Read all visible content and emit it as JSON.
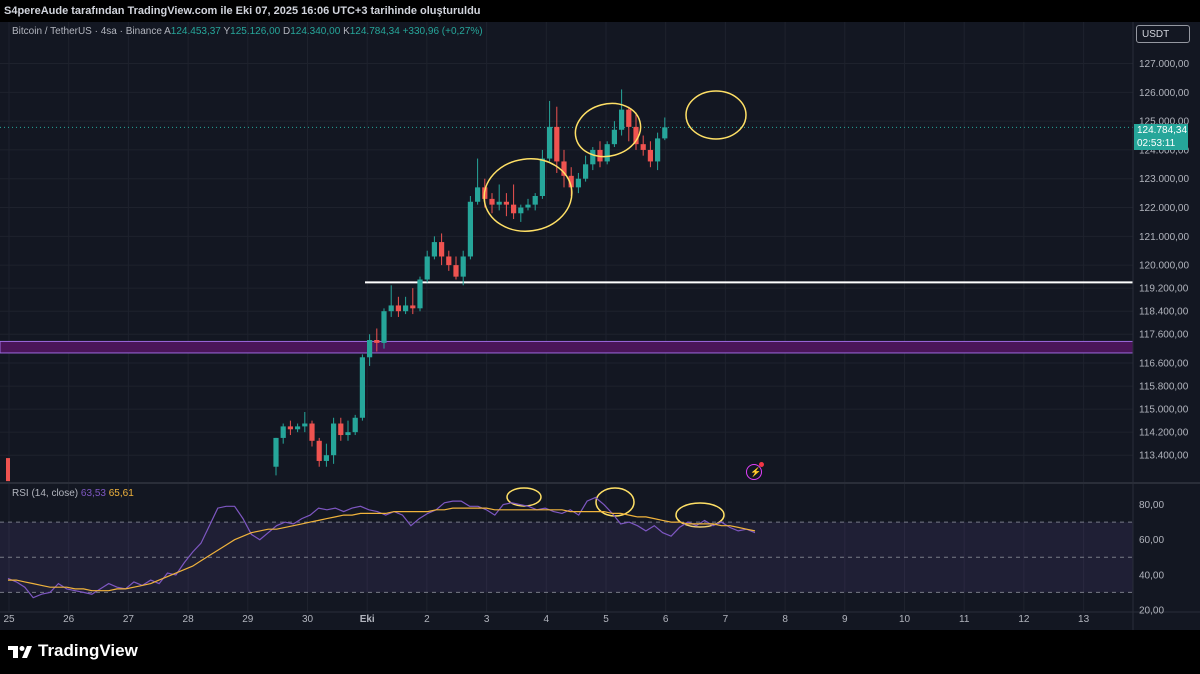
{
  "header": {
    "attribution": "S4pereAude tarafından TradingView.com ile Eki 07, 2025 16:06 UTC+3 tarihinde oluşturuldu"
  },
  "legend": {
    "symbol": "Bitcoin / TetherUS · 4sa · Binance",
    "open_label": "A",
    "open": "124.453,37",
    "high_label": "Y",
    "high": "125.126,00",
    "low_label": "D",
    "low": "124.340,00",
    "close_label": "K",
    "close": "124.784,34",
    "change": "+330,96 (+0,27%)"
  },
  "currency_button": "USDT",
  "last_price": {
    "value": "124.784,34",
    "countdown": "02:53:11"
  },
  "rsi_legend": {
    "label": "RSI (14, close)",
    "rsi": "63,53",
    "ma": "65,61"
  },
  "colors": {
    "up": "#26a69a",
    "down": "#ef5350",
    "rsi": "#7e57c2",
    "rsi_ma": "#f0b33c",
    "zone": "#7b1fa2",
    "background": "#131722"
  },
  "branding": {
    "logo": "tradingview-logo",
    "name": "TradingView"
  },
  "chart_data": [
    {
      "type": "candlestick",
      "timeframe": "4sa",
      "price_axis_ticks": [
        127000,
        126000,
        125000,
        124000,
        123000,
        122000,
        121000,
        120000,
        119200,
        118400,
        117600,
        116600,
        115800,
        115000,
        114200,
        113400
      ],
      "price_axis_labels": [
        "127.000,00",
        "126.000,00",
        "125.000,00",
        "124.000,00",
        "123.000,00",
        "122.000,00",
        "121.000,00",
        "120.000,00",
        "119.200,00",
        "118.400,00",
        "117.600,00",
        "116.600,00",
        "115.800,00",
        "115.000,00",
        "114.200,00",
        "113.400,00"
      ],
      "x_axis_labels": [
        "25",
        "26",
        "27",
        "28",
        "29",
        "30",
        "Eki",
        "2",
        "3",
        "4",
        "5",
        "6",
        "7",
        "8",
        "9",
        "10",
        "11",
        "12",
        "13"
      ],
      "candles": [
        {
          "o": 113000,
          "h": 114000,
          "c": 114000,
          "l": 112700
        },
        {
          "o": 114000,
          "h": 114500,
          "c": 114400,
          "l": 113800
        },
        {
          "o": 114400,
          "h": 114600,
          "c": 114300,
          "l": 114100
        },
        {
          "o": 114300,
          "h": 114500,
          "c": 114400,
          "l": 114200
        },
        {
          "o": 114400,
          "h": 114900,
          "c": 114500,
          "l": 114200
        },
        {
          "o": 114500,
          "h": 114600,
          "c": 113900,
          "l": 113700
        },
        {
          "o": 113900,
          "h": 114000,
          "c": 113200,
          "l": 113000
        },
        {
          "o": 113200,
          "h": 113800,
          "c": 113400,
          "l": 113000
        },
        {
          "o": 113400,
          "h": 114700,
          "c": 114500,
          "l": 113100
        },
        {
          "o": 114500,
          "h": 114700,
          "c": 114100,
          "l": 113900
        },
        {
          "o": 114100,
          "h": 114600,
          "c": 114200,
          "l": 113900
        },
        {
          "o": 114200,
          "h": 114800,
          "c": 114700,
          "l": 114100
        },
        {
          "o": 114700,
          "h": 116900,
          "c": 116800,
          "l": 114600
        },
        {
          "o": 116800,
          "h": 117600,
          "c": 117400,
          "l": 116500
        },
        {
          "o": 117400,
          "h": 117800,
          "c": 117300,
          "l": 117000
        },
        {
          "o": 117300,
          "h": 118500,
          "c": 118400,
          "l": 117100
        },
        {
          "o": 118400,
          "h": 119300,
          "c": 118600,
          "l": 118200
        },
        {
          "o": 118600,
          "h": 118900,
          "c": 118400,
          "l": 118200
        },
        {
          "o": 118400,
          "h": 118900,
          "c": 118600,
          "l": 118300
        },
        {
          "o": 118600,
          "h": 119200,
          "c": 118500,
          "l": 118300
        },
        {
          "o": 118500,
          "h": 119600,
          "c": 119500,
          "l": 118400
        },
        {
          "o": 119500,
          "h": 120500,
          "c": 120300,
          "l": 119400
        },
        {
          "o": 120300,
          "h": 121000,
          "c": 120800,
          "l": 120200
        },
        {
          "o": 120800,
          "h": 121100,
          "c": 120300,
          "l": 120000
        },
        {
          "o": 120300,
          "h": 120500,
          "c": 120000,
          "l": 119800
        },
        {
          "o": 120000,
          "h": 120300,
          "c": 119600,
          "l": 119500
        },
        {
          "o": 119600,
          "h": 120500,
          "c": 120300,
          "l": 119300
        },
        {
          "o": 120300,
          "h": 122400,
          "c": 122200,
          "l": 120200
        },
        {
          "o": 122200,
          "h": 123700,
          "c": 122700,
          "l": 122100
        },
        {
          "o": 122700,
          "h": 123000,
          "c": 122300,
          "l": 122000
        },
        {
          "o": 122300,
          "h": 122500,
          "c": 122100,
          "l": 121800
        },
        {
          "o": 122100,
          "h": 122800,
          "c": 122200,
          "l": 121900
        },
        {
          "o": 122200,
          "h": 122500,
          "c": 122100,
          "l": 121700
        },
        {
          "o": 122100,
          "h": 122800,
          "c": 121800,
          "l": 121600
        },
        {
          "o": 121800,
          "h": 122100,
          "c": 122000,
          "l": 121500
        },
        {
          "o": 122000,
          "h": 122300,
          "c": 122100,
          "l": 121900
        },
        {
          "o": 122100,
          "h": 122500,
          "c": 122400,
          "l": 121900
        },
        {
          "o": 122400,
          "h": 124000,
          "c": 123700,
          "l": 122300
        },
        {
          "o": 123700,
          "h": 125700,
          "c": 124800,
          "l": 123600
        },
        {
          "o": 124800,
          "h": 125500,
          "c": 123600,
          "l": 123200
        },
        {
          "o": 123600,
          "h": 124000,
          "c": 123100,
          "l": 122700
        },
        {
          "o": 123100,
          "h": 123400,
          "c": 122700,
          "l": 122400
        },
        {
          "o": 122700,
          "h": 123200,
          "c": 123000,
          "l": 122500
        },
        {
          "o": 123000,
          "h": 123800,
          "c": 123500,
          "l": 122900
        },
        {
          "o": 123500,
          "h": 124100,
          "c": 124000,
          "l": 123300
        },
        {
          "o": 124000,
          "h": 124300,
          "c": 123600,
          "l": 123400
        },
        {
          "o": 123600,
          "h": 124300,
          "c": 124200,
          "l": 123500
        },
        {
          "o": 124200,
          "h": 125000,
          "c": 124700,
          "l": 124100
        },
        {
          "o": 124700,
          "h": 126100,
          "c": 125400,
          "l": 124500
        },
        {
          "o": 125400,
          "h": 125500,
          "c": 124800,
          "l": 124300
        },
        {
          "o": 124800,
          "h": 125300,
          "c": 124200,
          "l": 124000
        },
        {
          "o": 124200,
          "h": 124500,
          "c": 124000,
          "l": 123800
        },
        {
          "o": 124000,
          "h": 124300,
          "c": 123600,
          "l": 123400
        },
        {
          "o": 123600,
          "h": 124600,
          "c": 124400,
          "l": 123300
        },
        {
          "o": 124400,
          "h": 125126,
          "c": 124784,
          "l": 124340
        }
      ],
      "horizontal_line": {
        "price": 119400,
        "color": "#ffffff"
      },
      "zone": {
        "from": 116950,
        "to": 117350,
        "color": "#7b1fa2"
      },
      "last_price_line": 124784.34,
      "annotations": [
        "freehand circles drawn in yellow around three local peaks"
      ]
    },
    {
      "type": "line",
      "title": "RSI (14, close)",
      "series": [
        {
          "name": "RSI",
          "values": [
            38,
            36,
            33,
            27,
            29,
            30,
            35,
            32,
            31,
            30,
            29,
            32,
            35,
            33,
            32,
            36,
            34,
            37,
            35,
            41,
            40,
            47,
            53,
            58,
            68,
            78,
            79,
            79,
            72,
            63,
            60,
            64,
            68,
            70,
            69,
            72,
            74,
            78,
            77,
            78,
            76,
            78,
            79,
            77,
            76,
            74,
            76,
            74,
            68,
            72,
            75,
            77,
            81,
            82,
            82,
            79,
            79,
            77,
            74,
            80,
            81,
            80,
            79,
            77,
            78,
            76,
            75,
            77,
            74,
            82,
            84,
            80,
            75,
            69,
            70,
            68,
            65,
            68,
            64,
            62,
            67,
            70,
            68,
            71,
            68,
            70,
            67,
            65,
            66,
            64
          ]
        },
        {
          "name": "RSI-based MA",
          "values": [
            37,
            37,
            36,
            35,
            34,
            33,
            33,
            33,
            32,
            32,
            31,
            31,
            31,
            32,
            32,
            33,
            34,
            35,
            37,
            39,
            41,
            43,
            45,
            48,
            51,
            54,
            57,
            60,
            62,
            64,
            65,
            66,
            66,
            67,
            68,
            69,
            70,
            71,
            72,
            73,
            74,
            74,
            75,
            75,
            75,
            75,
            76,
            76,
            76,
            76,
            76,
            77,
            77,
            78,
            78,
            78,
            78,
            78,
            77,
            77,
            77,
            77,
            77,
            77,
            77,
            77,
            77,
            76,
            76,
            76,
            76,
            76,
            75,
            75,
            74,
            73,
            73,
            72,
            71,
            70,
            70,
            69,
            69,
            69,
            69,
            68,
            68,
            67,
            66,
            65
          ]
        }
      ],
      "ylim": [
        20,
        90
      ],
      "levels": {
        "overbought": 70,
        "middle": 50,
        "oversold": 30
      },
      "y_axis_labels": [
        "80,00",
        "60,00",
        "40,00",
        "20,00"
      ],
      "y_axis_ticks": [
        80,
        60,
        40,
        20
      ]
    }
  ]
}
